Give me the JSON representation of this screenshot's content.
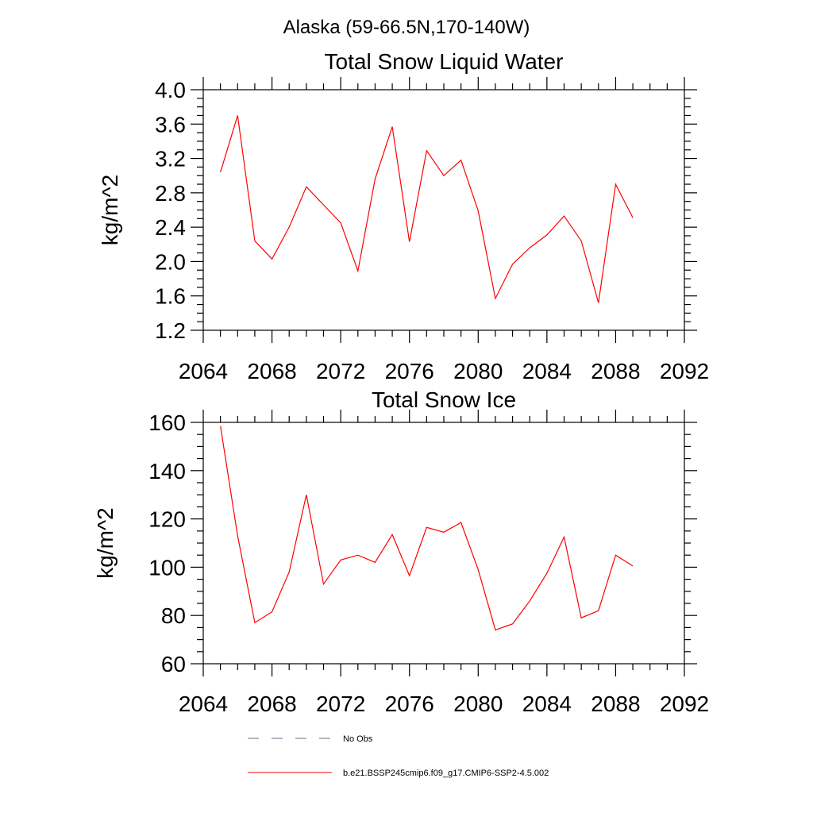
{
  "figure": {
    "suptitle": "Alaska (59-66.5N,170-140W)"
  },
  "colors": {
    "model": "#ff0000",
    "obs": "#6a6a8a",
    "axis": "#000000"
  },
  "legend": {
    "obs_label": "No Obs",
    "model_label": "b.e21.BSSP245cmip6.f09_g17.CMIP6-SSP2-4.5.002"
  },
  "chart_data": [
    {
      "type": "line",
      "title": "Total Snow Liquid Water",
      "ylabel": "kg/m^2",
      "xlabel": "",
      "xlim": [
        2064,
        2092
      ],
      "ylim": [
        1.2,
        4.0
      ],
      "x_ticks": [
        2064,
        2068,
        2072,
        2076,
        2080,
        2084,
        2088,
        2092
      ],
      "x_tick_labels": [
        "2064",
        "2068",
        "2072",
        "2076",
        "2080",
        "2084",
        "2088",
        "2092"
      ],
      "y_ticks": [
        1.2,
        1.6,
        2.0,
        2.4,
        2.8,
        3.2,
        3.6,
        4.0
      ],
      "y_tick_labels": [
        "1.2",
        "1.6",
        "2.0",
        "2.4",
        "2.8",
        "3.2",
        "3.6",
        "4.0"
      ],
      "grid": false,
      "series": [
        {
          "name": "b.e21.BSSP245cmip6.f09_g17.CMIP6-SSP2-4.5.002",
          "color": "#ff0000",
          "x": [
            2065,
            2066,
            2067,
            2068,
            2069,
            2070,
            2071,
            2072,
            2073,
            2074,
            2075,
            2076,
            2077,
            2078,
            2079,
            2080,
            2081,
            2082,
            2083,
            2084,
            2085,
            2086,
            2087,
            2088,
            2089
          ],
          "y": [
            3.04,
            3.7,
            2.24,
            2.03,
            2.4,
            2.87,
            2.66,
            2.45,
            1.89,
            2.96,
            3.57,
            2.23,
            3.29,
            3.0,
            3.18,
            2.59,
            1.57,
            1.97,
            2.16,
            2.31,
            2.53,
            2.24,
            1.52,
            2.9,
            2.51
          ]
        }
      ]
    },
    {
      "type": "line",
      "title": "Total Snow Ice",
      "ylabel": "kg/m^2",
      "xlabel": "",
      "xlim": [
        2064,
        2092
      ],
      "ylim": [
        60,
        160
      ],
      "x_ticks": [
        2064,
        2068,
        2072,
        2076,
        2080,
        2084,
        2088,
        2092
      ],
      "x_tick_labels": [
        "2064",
        "2068",
        "2072",
        "2076",
        "2080",
        "2084",
        "2088",
        "2092"
      ],
      "y_ticks": [
        60,
        80,
        100,
        120,
        140,
        160
      ],
      "y_tick_labels": [
        "60",
        "80",
        "100",
        "120",
        "140",
        "160"
      ],
      "grid": false,
      "series": [
        {
          "name": "b.e21.BSSP245cmip6.f09_g17.CMIP6-SSP2-4.5.002",
          "color": "#ff0000",
          "x": [
            2065,
            2066,
            2067,
            2068,
            2069,
            2070,
            2071,
            2072,
            2073,
            2074,
            2075,
            2076,
            2077,
            2078,
            2079,
            2080,
            2081,
            2082,
            2083,
            2084,
            2085,
            2086,
            2087,
            2088,
            2089
          ],
          "y": [
            158.5,
            113.0,
            77.0,
            81.5,
            98.0,
            130.0,
            93.0,
            103.0,
            105.0,
            102.0,
            113.5,
            96.5,
            116.5,
            114.5,
            118.5,
            99.0,
            74.0,
            76.5,
            86.0,
            97.5,
            112.5,
            79.0,
            82.0,
            105.0,
            100.5
          ]
        }
      ]
    }
  ]
}
